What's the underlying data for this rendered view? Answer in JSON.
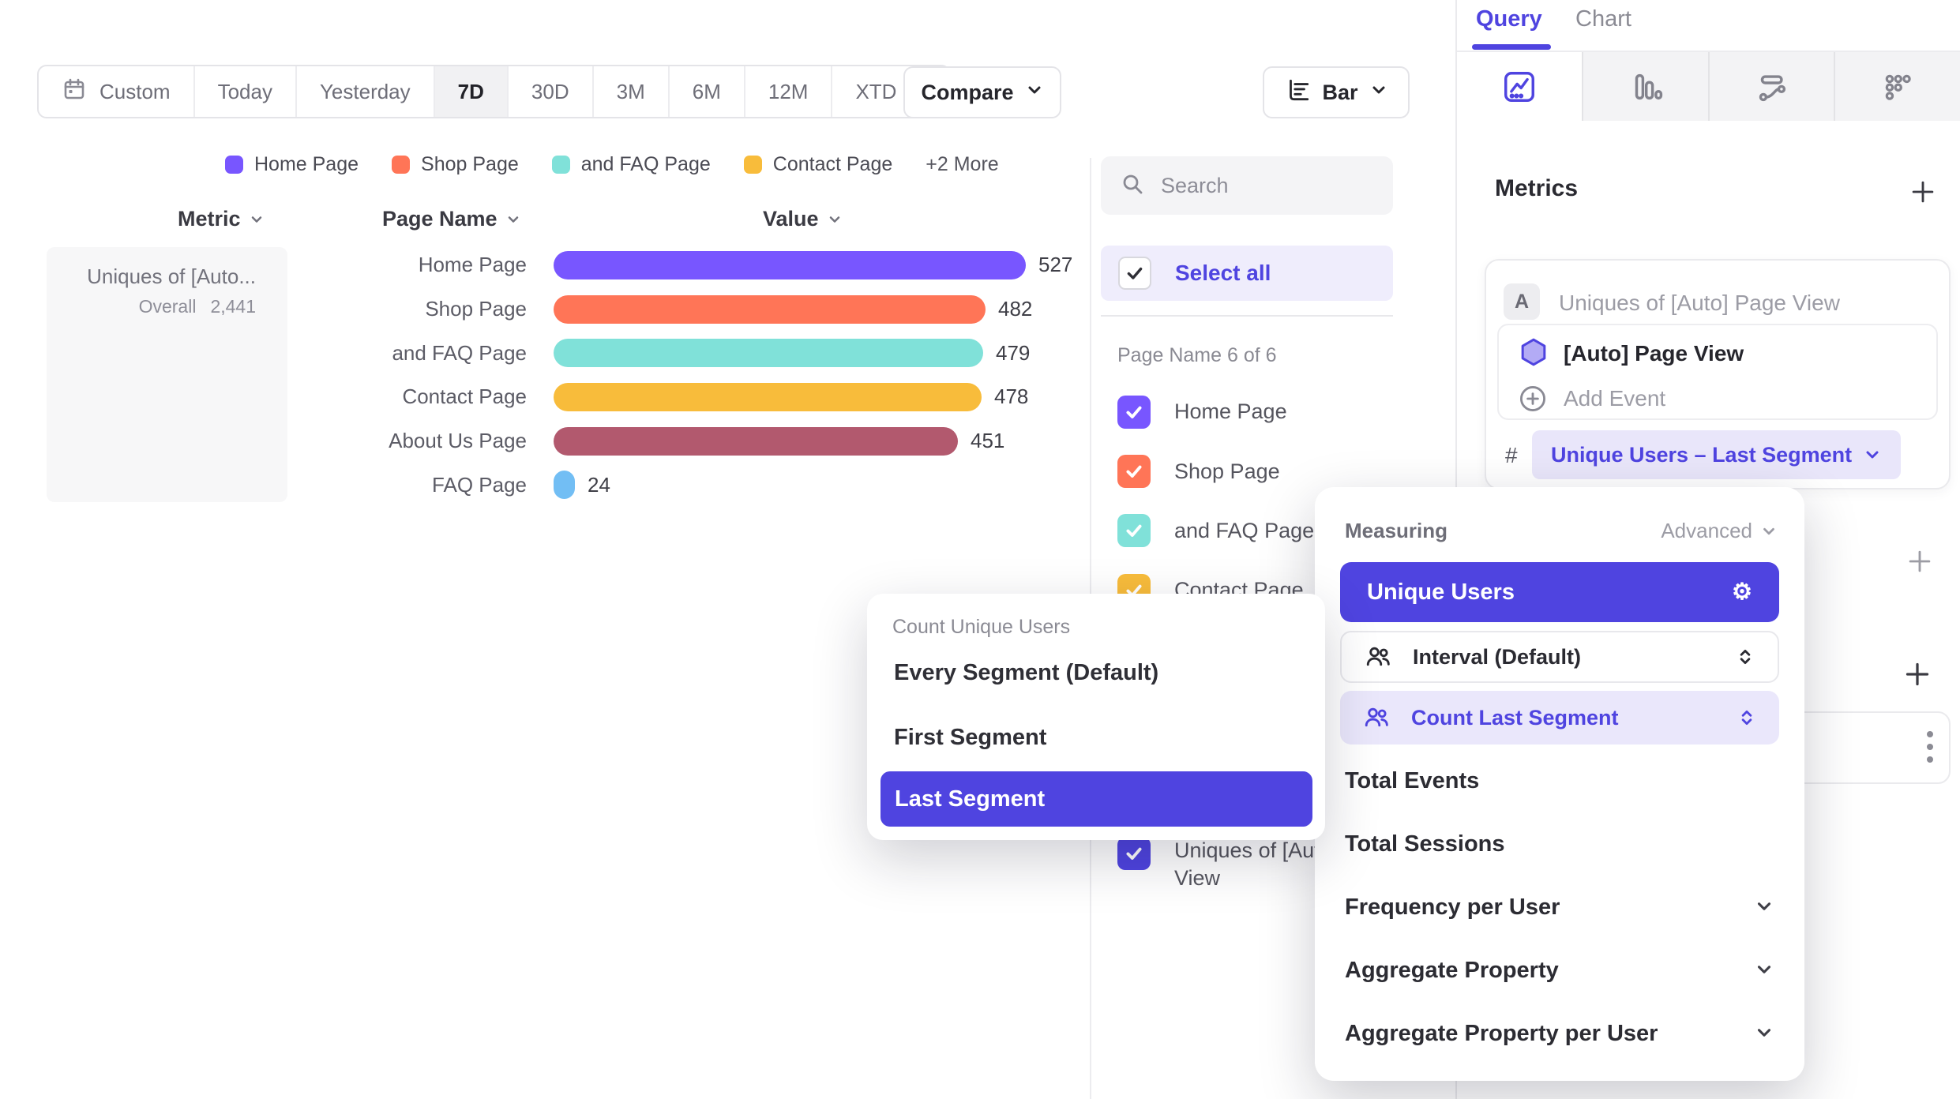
{
  "toolbar": {
    "date_ranges": [
      "Custom",
      "Today",
      "Yesterday",
      "7D",
      "30D",
      "3M",
      "6M",
      "12M",
      "XTD"
    ],
    "active_range": "7D",
    "compare_label": "Compare",
    "chart_type_button": "Bar"
  },
  "legend": {
    "items": [
      {
        "label": "Home Page",
        "color": "#7856FF"
      },
      {
        "label": "Shop Page",
        "color": "#FF7557"
      },
      {
        "label": "and FAQ Page",
        "color": "#80E1D9"
      },
      {
        "label": "Contact Page",
        "color": "#F8BC3B"
      }
    ],
    "more_label": "+2 More"
  },
  "table_headers": {
    "metric": "Metric",
    "page_name": "Page Name",
    "value": "Value"
  },
  "metric_summary_card": {
    "title": "Uniques of [Auto...",
    "overall_label": "Overall",
    "overall_value": "2,441"
  },
  "chart_data": {
    "type": "bar",
    "orientation": "horizontal",
    "title": "Uniques of [Auto] Page View",
    "categories": [
      "Home Page",
      "Shop Page",
      "and FAQ Page",
      "Contact Page",
      "About Us Page",
      "FAQ Page"
    ],
    "values": [
      527,
      482,
      479,
      478,
      451,
      24
    ],
    "colors": [
      "#7856FF",
      "#FF7557",
      "#80E1D9",
      "#F8BC3B",
      "#B2596E",
      "#72BEF4"
    ],
    "max_value": 527,
    "value_labels_shown": true,
    "overall_total": 2441,
    "legend_position": "top",
    "grid": false
  },
  "filter_panel": {
    "search_placeholder": "Search",
    "select_all_label": "Select all",
    "count_label": "Page Name 6 of 6",
    "items": [
      {
        "label": "Home Page",
        "color": "#7856FF"
      },
      {
        "label": "Shop Page",
        "color": "#FF7557"
      },
      {
        "label": "and FAQ Page",
        "color": "#80E1D9"
      },
      {
        "label": "Contact Page",
        "color": "#F8BC3B"
      },
      {
        "label": "About Us Page",
        "color": "#B2596E"
      },
      {
        "label": "FAQ Page",
        "color": "#72BEF4"
      }
    ],
    "metric_item": {
      "label": "Uniques of [Auto] Page View",
      "color": "#4F44E0"
    }
  },
  "query_panel": {
    "tabs": [
      "Query",
      "Chart"
    ],
    "active_tab": "Query",
    "metrics_title": "Metrics",
    "metric_row": {
      "badge": "A",
      "title": "Uniques of [Auto] Page View",
      "event_name": "[Auto] Page View",
      "add_event_label": "Add Event",
      "hash": "#",
      "aggregation_pill": "Unique Users – Last Segment"
    }
  },
  "measuring_popup": {
    "title": "Measuring",
    "advanced_label": "Advanced",
    "selected": "Unique Users",
    "stepper_rows": [
      {
        "label": "Interval (Default)",
        "active": false
      },
      {
        "label": "Count Last Segment",
        "active": true
      }
    ],
    "items": [
      "Total Events",
      "Total Sessions"
    ],
    "expandable_items": [
      "Frequency per User",
      "Aggregate Property",
      "Aggregate Property per User"
    ]
  },
  "segment_popup": {
    "title": "Count Unique Users",
    "options": [
      "Every Segment (Default)",
      "First Segment",
      "Last Segment"
    ],
    "selected": "Last Segment"
  },
  "icons": {
    "calendar-icon": "calendar outline",
    "chevron-down-icon": "v chevron",
    "bar-chart-icon": "horizontal bars with axis",
    "search-icon": "magnifier",
    "checkmark-icon": "check",
    "insights-chart-icon": "line chart in rounded square",
    "funnel-chart-icon": "descending vertical bars",
    "flow-chart-icon": "pill and curved path",
    "retention-chart-icon": "triangular dot grid",
    "plus-icon": "plus",
    "hexagon-icon": "purple hexagon event marker",
    "circle-plus-icon": "plus in circle",
    "people-icon": "two users",
    "stepper-icon": "up and down chevrons",
    "gear-icon": "settings gear",
    "kebab-icon": "three vertical dots"
  },
  "colors": {
    "accent": "#4F44E0",
    "accent_light_bg": "#EFEDFC",
    "border": "#E6E6EA",
    "text_dark": "#2F2F36",
    "text_gray": "#8A8A94",
    "surface_gray": "#F5F5F6"
  }
}
